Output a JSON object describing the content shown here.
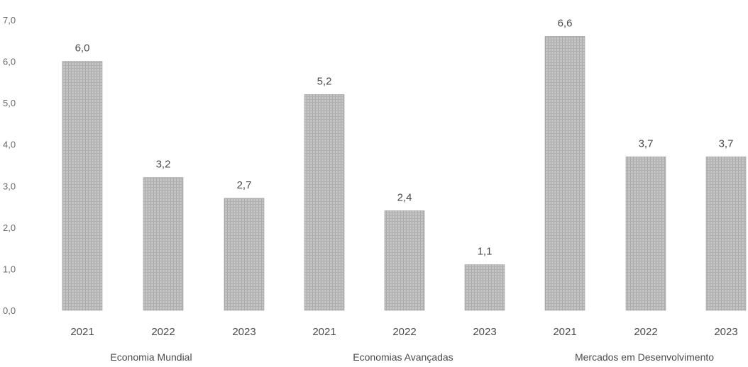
{
  "chart_data": {
    "type": "bar",
    "title": "",
    "xlabel": "",
    "ylabel": "",
    "ylim": [
      0,
      7
    ],
    "y_ticks": [
      "0,0",
      "1,0",
      "2,0",
      "3,0",
      "4,0",
      "5,0",
      "6,0",
      "7,0"
    ],
    "grid": false,
    "legend": "none",
    "groups": [
      {
        "name": "Economia Mundial",
        "categories": [
          "2021",
          "2022",
          "2023"
        ],
        "values": [
          6.0,
          3.2,
          2.7
        ],
        "labels": [
          "6,0",
          "3,2",
          "2,7"
        ]
      },
      {
        "name": "Economias Avançadas",
        "categories": [
          "2021",
          "2022",
          "2023"
        ],
        "values": [
          5.2,
          2.4,
          1.1
        ],
        "labels": [
          "5,2",
          "2,4",
          "1,1"
        ]
      },
      {
        "name": "Mercados em Desenvolvimento",
        "categories": [
          "2021",
          "2022",
          "2023"
        ],
        "values": [
          6.6,
          3.7,
          3.7
        ],
        "labels": [
          "6,6",
          "3,7",
          "3,7"
        ]
      }
    ],
    "bar_color": "#bdbdbd"
  }
}
